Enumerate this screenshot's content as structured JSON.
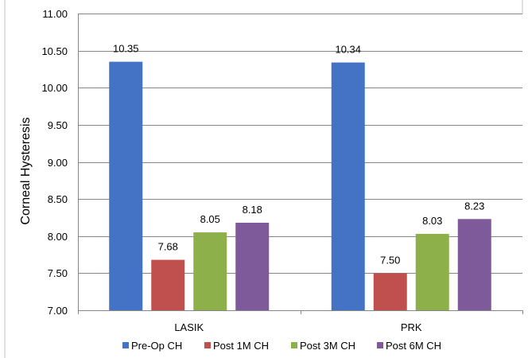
{
  "chart_data": {
    "type": "bar",
    "title": "",
    "xlabel": "",
    "ylabel": "Corneal Hysteresis",
    "ylim": [
      7.0,
      11.0
    ],
    "yticks": [
      "7.00",
      "7.50",
      "8.00",
      "8.50",
      "9.00",
      "9.50",
      "10.00",
      "10.50",
      "11.00"
    ],
    "grid": "horizontal",
    "legend_position": "bottom",
    "categories": [
      "LASIK",
      "PRK"
    ],
    "series": [
      {
        "name": "Pre-Op CH",
        "color": "#4472C4",
        "values": [
          10.35,
          10.34
        ],
        "labels": [
          "10.35",
          "10.34"
        ]
      },
      {
        "name": "Post 1M CH",
        "color": "#C0504D",
        "values": [
          7.68,
          7.5
        ],
        "labels": [
          "7.68",
          "7.50"
        ]
      },
      {
        "name": "Post 3M CH",
        "color": "#8DB04A",
        "values": [
          8.05,
          8.03
        ],
        "labels": [
          "8.05",
          "8.03"
        ]
      },
      {
        "name": "Post 6M CH",
        "color": "#7E5A9B",
        "values": [
          8.18,
          8.23
        ],
        "labels": [
          "8.18",
          "8.23"
        ]
      }
    ]
  }
}
